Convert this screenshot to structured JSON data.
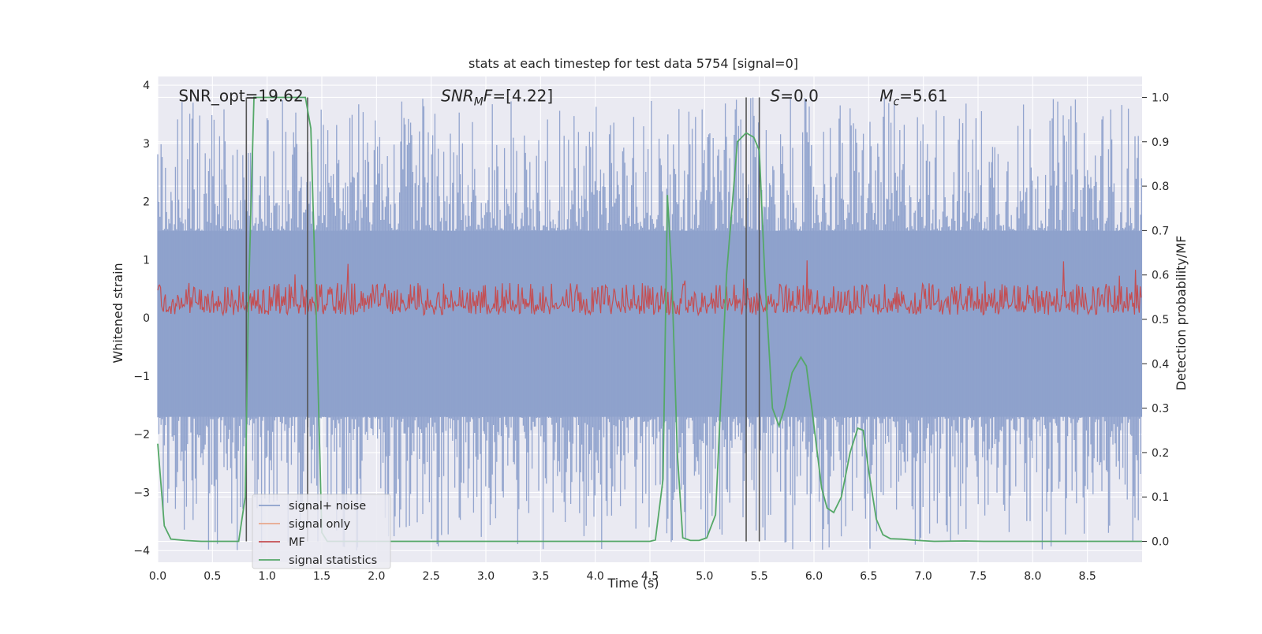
{
  "chart_data": {
    "type": "line",
    "title": "stats at each timestep for test data 5754 [signal=0]",
    "xlabel": "Time (s)",
    "ylabel": "Whitened strain",
    "y2label": "Detection probability/MF",
    "xlim": [
      0,
      9.0
    ],
    "ylim": [
      -4.2,
      4.15
    ],
    "y2lim": [
      -0.047,
      1.047
    ],
    "x_ticks": [
      "0.0",
      "0.5",
      "1.0",
      "1.5",
      "2.0",
      "2.5",
      "3.0",
      "3.5",
      "4.0",
      "4.5",
      "5.0",
      "5.5",
      "6.0",
      "6.5",
      "7.0",
      "7.5",
      "8.0",
      "8.5"
    ],
    "y_ticks": [
      "−4",
      "−3",
      "−2",
      "−1",
      "0",
      "1",
      "2",
      "3",
      "4"
    ],
    "y2_ticks": [
      "0.0",
      "0.1",
      "0.2",
      "0.3",
      "0.4",
      "0.5",
      "0.6",
      "0.7",
      "0.8",
      "0.9",
      "1.0"
    ],
    "grid": true,
    "legend_position": "lower-left",
    "annotations": [
      {
        "text": "SNR_opt=19.62",
        "x": 0.19,
        "y": 3.82,
        "math": false
      },
      {
        "text": "SNR",
        "sub": "M",
        "tail": "F=[4.22]",
        "x": 2.59,
        "y": 3.82,
        "math": true
      },
      {
        "text": "S",
        "sub": "",
        "tail": "=0.0",
        "x": 5.6,
        "y": 3.82,
        "math": true
      },
      {
        "text": "M",
        "sub": "c",
        "tail": "=5.61",
        "x": 6.6,
        "y": 3.82,
        "math": true
      }
    ],
    "vlines": [
      {
        "x": 0.81,
        "color": "#555555"
      },
      {
        "x": 1.37,
        "color": "#555555"
      },
      {
        "x": 5.38,
        "color": "#555555"
      },
      {
        "x": 5.5,
        "color": "#555555"
      }
    ],
    "series": [
      {
        "name": "signal+ noise",
        "color": "#8da0cb",
        "axis": "left",
        "kind": "noise",
        "baseline_band": [
          -1.7,
          1.5
        ],
        "peaks_max": 3.8,
        "peaks_min": -4.0
      },
      {
        "name": "signal only",
        "color": "#e8a88c",
        "axis": "left",
        "kind": "flat",
        "values": []
      },
      {
        "name": "MF",
        "color": "#c44e52",
        "axis": "left",
        "kind": "noise_band",
        "band": [
          0.05,
          0.6
        ],
        "peaks_max": 1.0
      },
      {
        "name": "signal statistics",
        "color": "#55a868",
        "axis": "right",
        "kind": "line",
        "x": [
          0.0,
          0.06,
          0.12,
          0.25,
          0.4,
          0.6,
          0.74,
          0.8,
          0.83,
          0.88,
          0.92,
          1.2,
          1.35,
          1.4,
          1.45,
          1.5,
          1.55,
          2.0,
          3.0,
          4.0,
          4.5,
          4.55,
          4.62,
          4.66,
          4.7,
          4.75,
          4.8,
          4.87,
          4.95,
          5.02,
          5.1,
          5.2,
          5.3,
          5.38,
          5.45,
          5.5,
          5.55,
          5.62,
          5.68,
          5.73,
          5.8,
          5.88,
          5.93,
          5.98,
          6.07,
          6.12,
          6.18,
          6.25,
          6.33,
          6.4,
          6.45,
          6.5,
          6.57,
          6.63,
          6.7,
          6.8,
          6.95,
          7.1,
          7.38,
          7.55,
          8.0,
          9.0
        ],
        "y": [
          0.22,
          0.035,
          0.005,
          0.002,
          0.0,
          0.0,
          0.0,
          0.1,
          0.55,
          1.0,
          1.0,
          1.0,
          1.0,
          0.93,
          0.5,
          0.02,
          0.0,
          0.0,
          0.0,
          0.0,
          0.0,
          0.003,
          0.14,
          0.78,
          0.6,
          0.2,
          0.008,
          0.002,
          0.002,
          0.008,
          0.06,
          0.6,
          0.9,
          0.92,
          0.91,
          0.88,
          0.6,
          0.3,
          0.26,
          0.3,
          0.38,
          0.415,
          0.395,
          0.3,
          0.12,
          0.075,
          0.065,
          0.1,
          0.2,
          0.255,
          0.25,
          0.16,
          0.05,
          0.015,
          0.006,
          0.005,
          0.002,
          0.0,
          0.001,
          0.0,
          0.0,
          0.0
        ]
      }
    ]
  }
}
